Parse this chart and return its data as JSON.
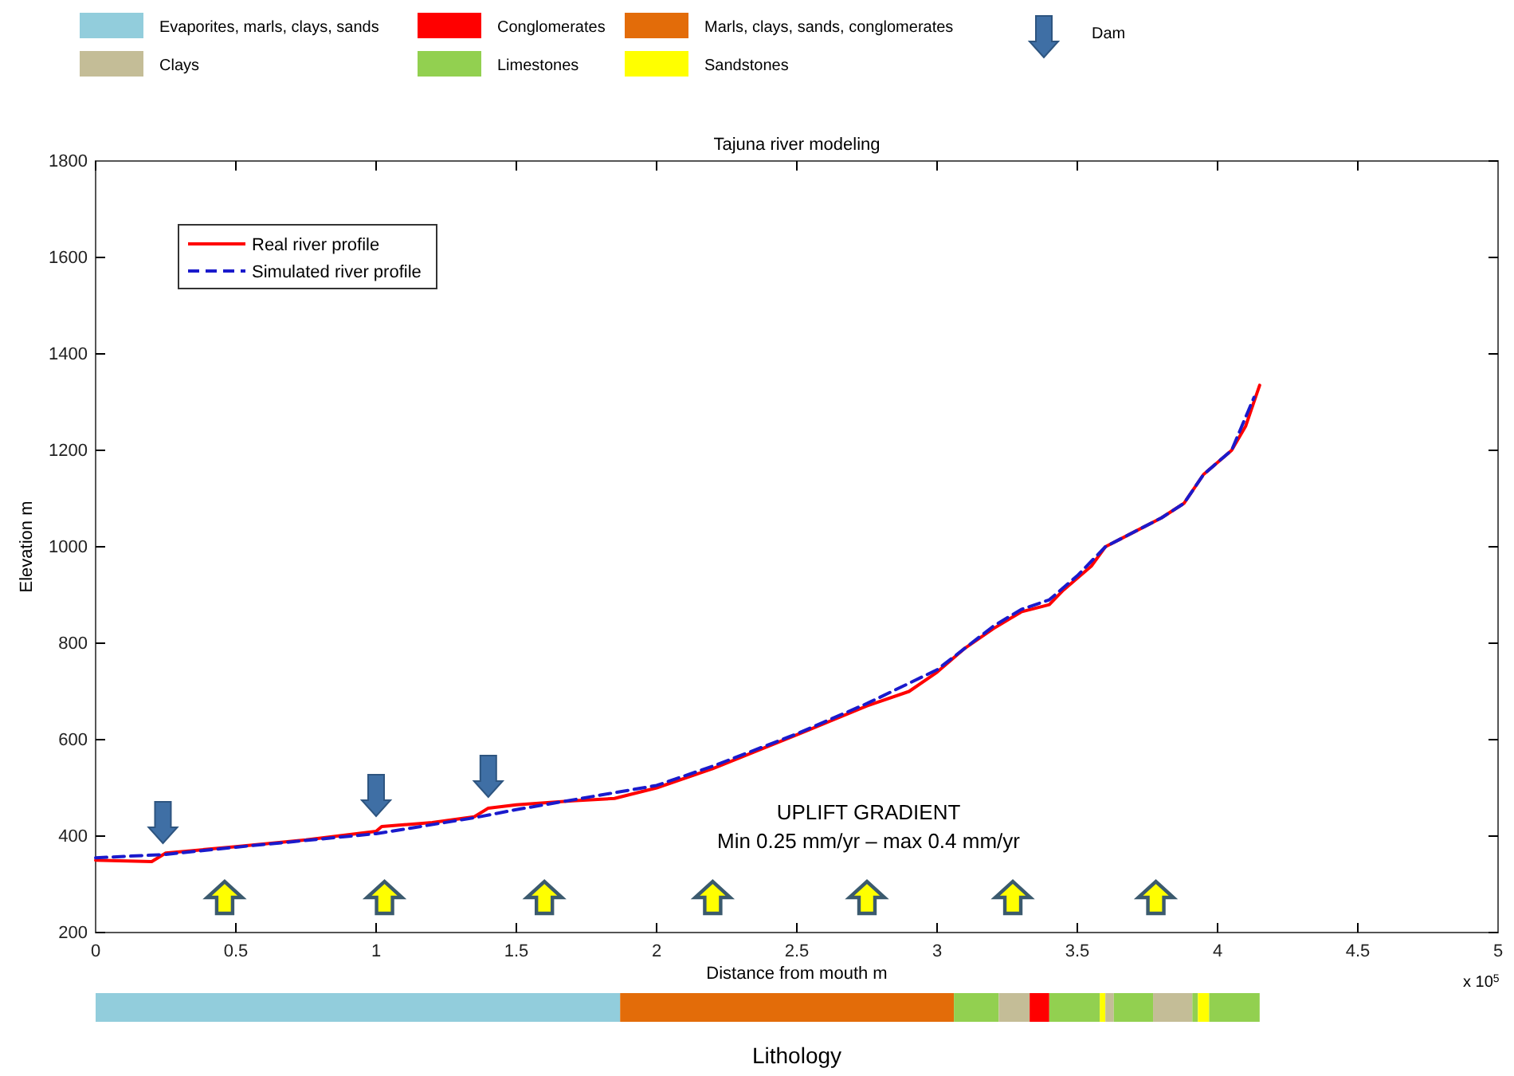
{
  "chart_data": [
    {
      "type": "line",
      "title": "Tajuna river modeling",
      "xlabel": "Distance from mouth m",
      "ylabel": "Elevation m",
      "xlim": [
        0,
        5
      ],
      "xticks": [
        0,
        0.5,
        1,
        1.5,
        2,
        2.5,
        3,
        3.5,
        4,
        4.5,
        5
      ],
      "ylim": [
        200,
        1800
      ],
      "yticks": [
        200,
        400,
        600,
        800,
        1000,
        1200,
        1400,
        1600,
        1800
      ],
      "grid": false,
      "legend": "top left",
      "annotations": [
        "UPLIFT GRADIENT",
        "Min 0.25 mm/yr – max 0.4 mm/yr",
        "x 10$^{5}$",
        "Dam"
      ],
      "series": [
        {
          "name": "Real river profile",
          "color": "#ff0000",
          "line_style": "solid",
          "x": [
            0,
            0.2,
            0.25,
            0.5,
            0.75,
            1.0,
            1.02,
            1.2,
            1.35,
            1.4,
            1.5,
            1.7,
            1.85,
            2.0,
            2.2,
            2.5,
            2.75,
            2.9,
            3.0,
            3.1,
            3.2,
            3.3,
            3.4,
            3.45,
            3.55,
            3.6,
            3.7,
            3.8,
            3.88,
            3.95,
            4.05,
            4.1,
            4.15
          ],
          "values": [
            350,
            347,
            365,
            378,
            392,
            410,
            420,
            428,
            440,
            458,
            465,
            473,
            478,
            500,
            540,
            610,
            670,
            700,
            740,
            790,
            830,
            865,
            880,
            910,
            960,
            1000,
            1030,
            1060,
            1090,
            1150,
            1200,
            1250,
            1335
          ]
        },
        {
          "name": "Simulated river profile",
          "color": "#1a1acc",
          "line_style": "dashed",
          "x": [
            0,
            0.25,
            0.5,
            1.0,
            1.35,
            1.5,
            1.8,
            2.0,
            2.2,
            2.5,
            2.75,
            3.0,
            3.2,
            3.3,
            3.4,
            3.5,
            3.6,
            3.8,
            3.88,
            3.95,
            4.05,
            4.13
          ],
          "values": [
            355,
            362,
            377,
            405,
            438,
            455,
            485,
            505,
            545,
            612,
            675,
            745,
            835,
            870,
            890,
            940,
            1000,
            1060,
            1090,
            1150,
            1200,
            1310
          ]
        }
      ]
    },
    {
      "type": "bar",
      "orientation": "horizontal",
      "stacked": true,
      "xlabel": "Lithology",
      "xlim": [
        0,
        5
      ],
      "tick_labels": false,
      "legend": "top",
      "categories": [
        null
      ],
      "series": [
        {
          "name": "Evaporites, marls, clays, sands",
          "color": "#92cddc",
          "values": [
            1.87
          ]
        },
        {
          "name": "Marls, clays, sands, conglomerates",
          "color": "#e36c09",
          "values": [
            1.19
          ]
        },
        {
          "name": "Limestones",
          "color": "#92d050",
          "values": [
            0.16
          ]
        },
        {
          "name": "Clays",
          "color": "#c4bd97",
          "values": [
            0.11
          ]
        },
        {
          "name": "Conglomerates",
          "color": "#ff0000",
          "values": [
            0.07
          ]
        },
        {
          "color": "#92d050",
          "values": [
            0.18
          ]
        },
        {
          "name": "Sandstones",
          "color": "#ffff00",
          "values": [
            0.02
          ]
        },
        {
          "color": "#c4bd97",
          "values": [
            0.03
          ]
        },
        {
          "color": "#92d050",
          "values": [
            0.14
          ]
        },
        {
          "color": "#c4bd97",
          "values": [
            0.14
          ]
        },
        {
          "color": "#92d050",
          "values": [
            0.02
          ]
        },
        {
          "color": "#ffff00",
          "values": [
            0.04
          ]
        },
        {
          "color": "#92d050",
          "values": [
            0.18
          ]
        }
      ]
    }
  ]
}
